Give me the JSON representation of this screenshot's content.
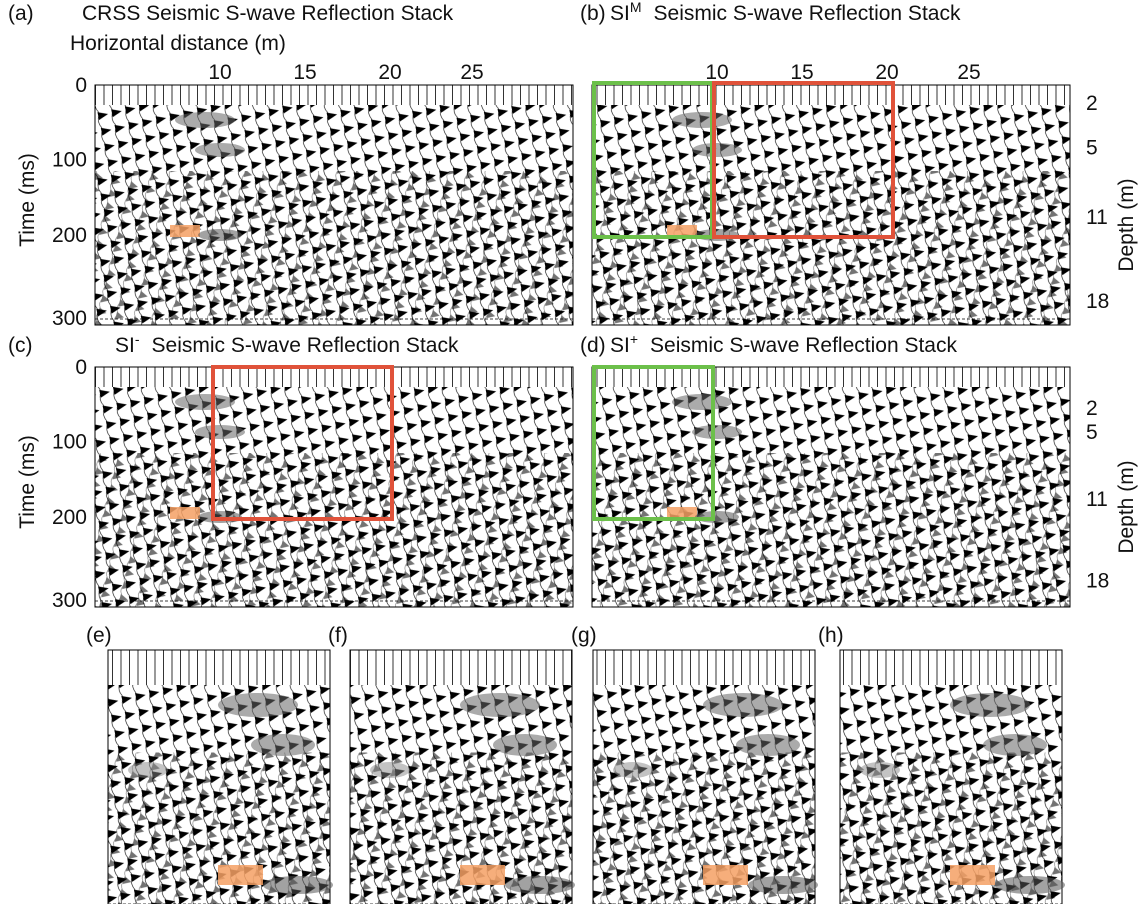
{
  "panels": [
    {
      "label": "(a)",
      "title": "CRSS Seismic S-wave Reflection Stack",
      "x_axis_label": "Horizontal distance (m)",
      "x_ticks": [
        "10",
        "15",
        "20",
        "25"
      ],
      "y_axis_label": "Time (ms)",
      "y_ticks": [
        "0",
        "100",
        "200",
        "300"
      ]
    },
    {
      "label": "(b)",
      "title_prefix": "SI",
      "title_sup": "M",
      "title": "Seismic S-wave Reflection Stack",
      "x_ticks": [
        "10",
        "15",
        "20",
        "25"
      ],
      "depth_axis_label": "Depth (m)",
      "depth_ticks": [
        "2",
        "5",
        "11",
        "18"
      ]
    },
    {
      "label": "(c)",
      "title_prefix": "SI",
      "title_sup": "-",
      "title": "Seismic S-wave Reflection Stack",
      "y_axis_label": "Time (ms)",
      "y_ticks": [
        "0",
        "100",
        "200",
        "300"
      ]
    },
    {
      "label": "(d)",
      "title_prefix": "SI",
      "title_sup": "+",
      "title": "Seismic S-wave Reflection Stack",
      "depth_axis_label": "Depth (m)",
      "depth_ticks": [
        "2",
        "5",
        "11",
        "18"
      ]
    }
  ],
  "zooms": [
    {
      "label": "(e)"
    },
    {
      "label": "(f)"
    },
    {
      "label": "(g)"
    },
    {
      "label": "(h)"
    }
  ]
}
